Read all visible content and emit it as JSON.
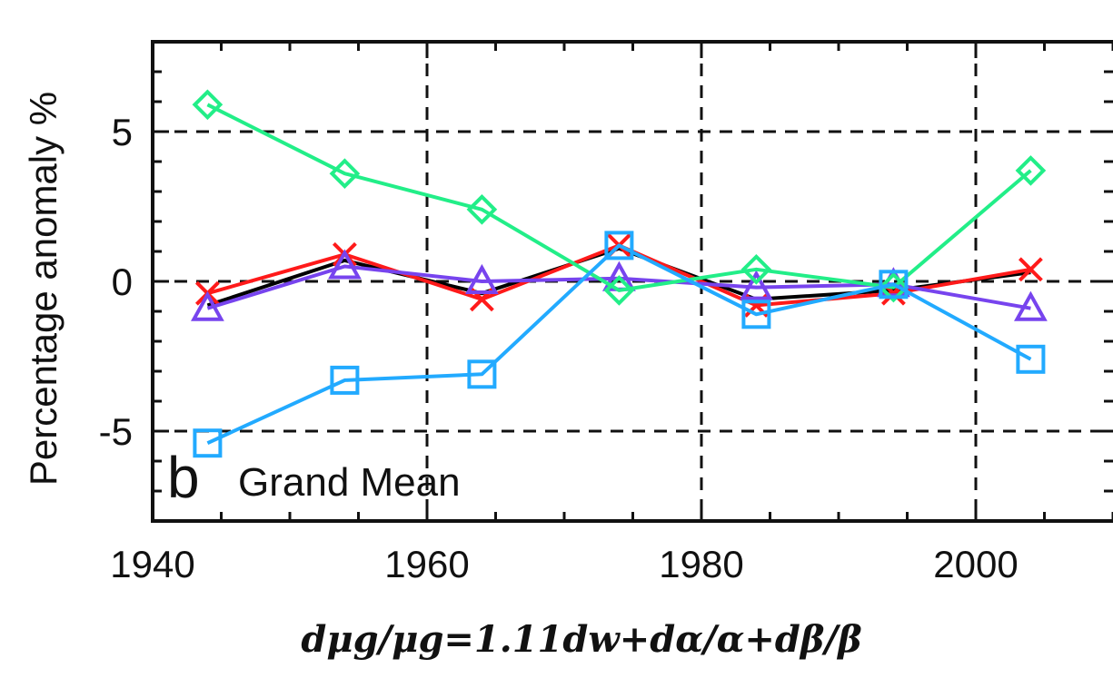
{
  "chart_data": {
    "type": "line",
    "panel_letter": "b",
    "panel_title": "Grand Mean",
    "ylabel": "Percentage anomaly %",
    "xlabel": "dμg/μg=1.11dw+dα/α+dβ/β",
    "xlim": [
      1940,
      2010
    ],
    "ylim": [
      -8,
      8
    ],
    "xticks": [
      1940,
      1960,
      1980,
      2000
    ],
    "yticks": [
      -5,
      0,
      5
    ],
    "grid": true,
    "x": [
      1944,
      1954,
      1964,
      1974,
      1984,
      1994,
      2004
    ],
    "series": [
      {
        "color": "#000000",
        "marker": "none",
        "values": [
          -0.8,
          0.7,
          -0.4,
          1.1,
          -0.6,
          -0.3,
          0.3
        ]
      },
      {
        "color": "#ff1a1a",
        "marker": "x",
        "values": [
          -0.4,
          0.9,
          -0.6,
          1.2,
          -0.8,
          -0.4,
          0.4
        ]
      },
      {
        "color": "#7744ee",
        "marker": "triangle",
        "values": [
          -0.9,
          0.5,
          0.0,
          0.1,
          -0.2,
          -0.1,
          -0.9
        ]
      },
      {
        "color": "#22ee88",
        "marker": "diamond",
        "values": [
          5.9,
          3.6,
          2.4,
          -0.3,
          0.4,
          -0.2,
          3.7
        ]
      },
      {
        "color": "#22aaff",
        "marker": "square",
        "values": [
          -5.4,
          -3.3,
          -3.1,
          1.2,
          -1.1,
          -0.1,
          -2.6
        ]
      }
    ]
  }
}
